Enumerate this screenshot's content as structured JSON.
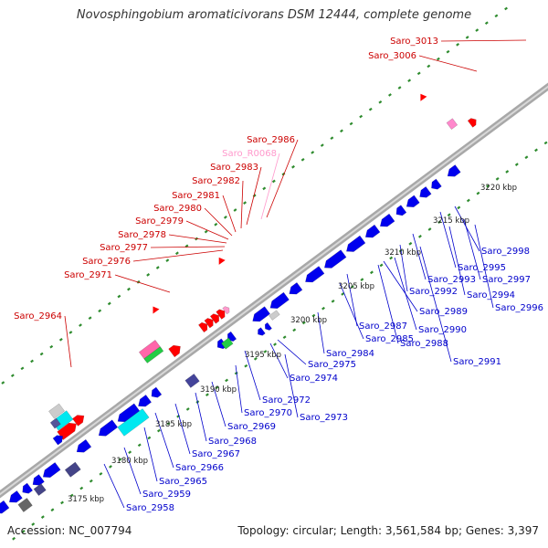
{
  "title": "Novosphingobium aromaticivorans DSM 12444, complete genome",
  "footer": {
    "accession": "Accession: NC_007794",
    "summary": "Topology: circular; Length: 3,561,584 bp; Genes: 3,397"
  },
  "colors": {
    "backbone": "#a8a8a8",
    "tick": "#2e8b2e",
    "forward_label": "#cc0000",
    "reverse_label": "#0000cc",
    "rna_label": "#ff99cc",
    "cds": "#0000ee",
    "misc": "#ff0000"
  },
  "scale_labels": [
    "3175 kbp",
    "3180 kbp",
    "3185 kbp",
    "3190 kbp",
    "3195 kbp",
    "3200 kbp",
    "3205 kbp",
    "3210 kbp",
    "3215 kbp",
    "3220 kbp"
  ],
  "forward_labels": [
    "Saro_3013",
    "Saro_3006",
    "Saro_2986",
    "Saro_R0068",
    "Saro_2983",
    "Saro_2982",
    "Saro_2981",
    "Saro_2980",
    "Saro_2979",
    "Saro_2978",
    "Saro_2977",
    "Saro_2976",
    "Saro_2971",
    "Saro_2964"
  ],
  "reverse_labels": [
    "Saro_2998",
    "Saro_2995",
    "Saro_2997",
    "Saro_2993",
    "Saro_2994",
    "Saro_2992",
    "Saro_2996",
    "Saro_2989",
    "Saro_2987",
    "Saro_2990",
    "Saro_2985",
    "Saro_2988",
    "Saro_2984",
    "Saro_2991",
    "Saro_2975",
    "Saro_2974",
    "Saro_2972",
    "Saro_2970",
    "Saro_2973",
    "Saro_2969",
    "Saro_2968",
    "Saro_2967",
    "Saro_2966",
    "Saro_2965",
    "Saro_2959",
    "Saro_2958"
  ]
}
